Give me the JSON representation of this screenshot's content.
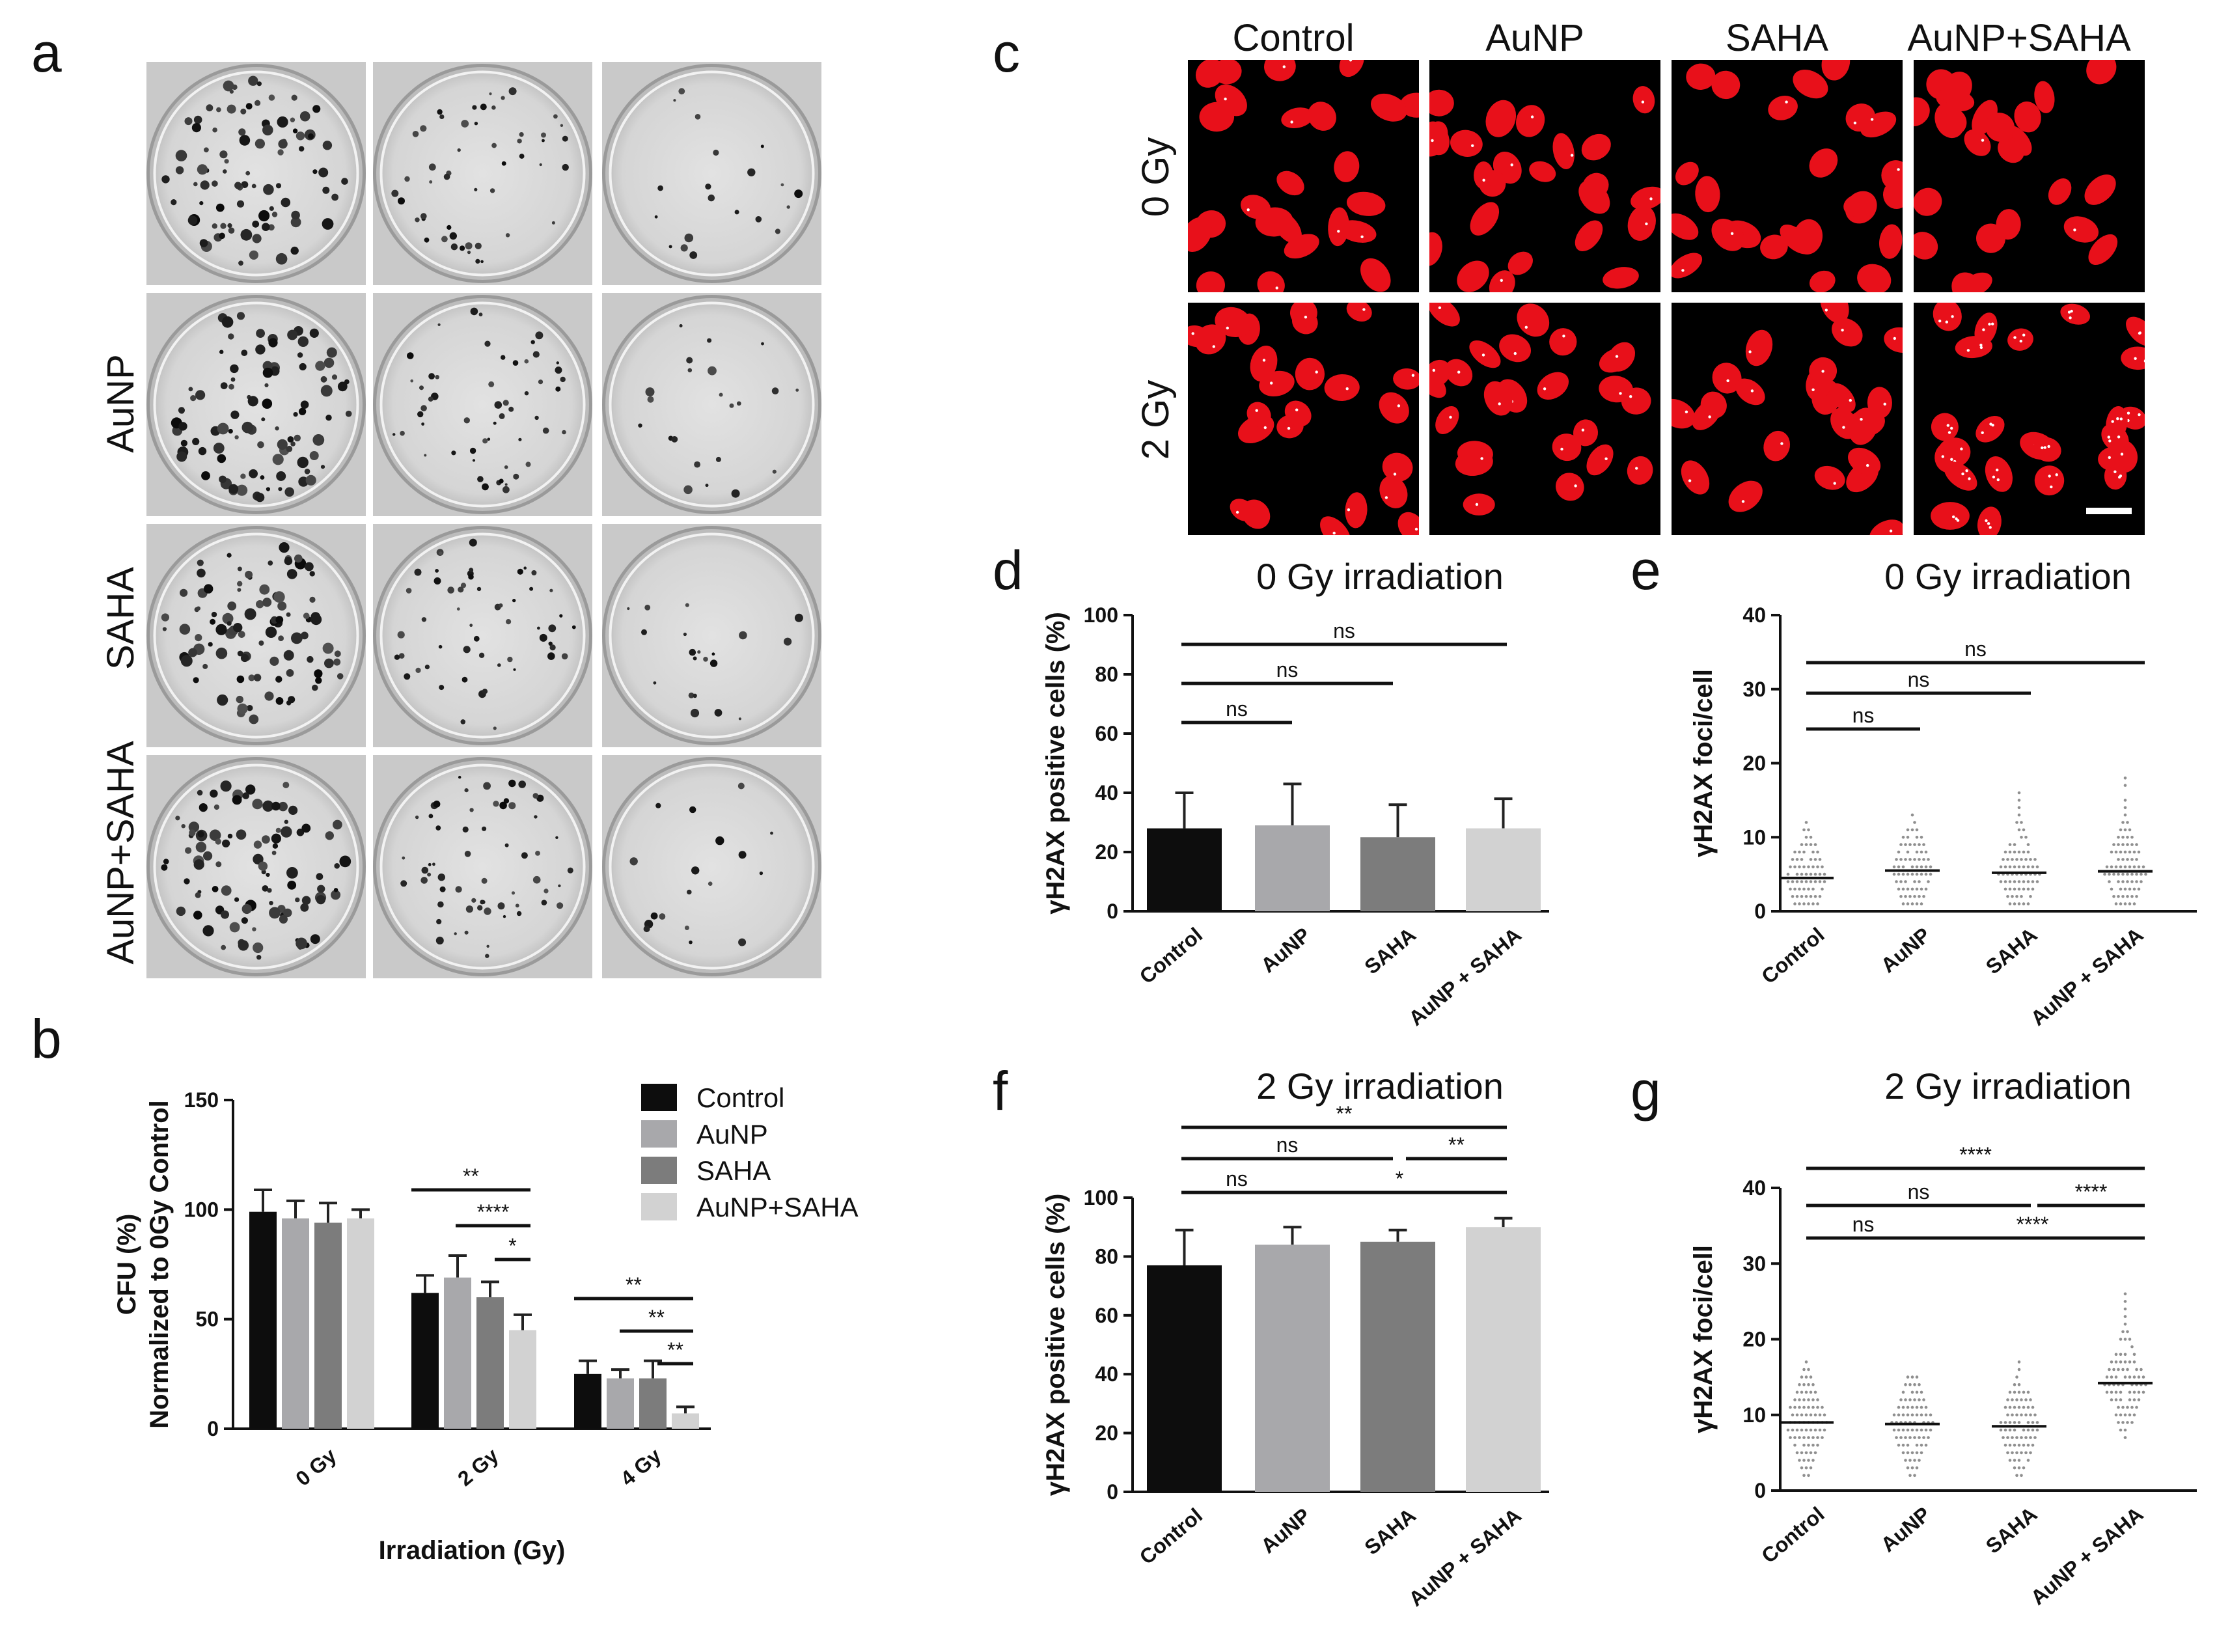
{
  "panel_labels": {
    "a": "a",
    "b": "b",
    "c": "c",
    "d": "d",
    "e": "e",
    "f": "f",
    "g": "g"
  },
  "panel_a": {
    "row_labels": [
      "",
      "AuNP",
      "SAHA",
      "AuNP+SAHA"
    ],
    "columns": 3
  },
  "panel_c": {
    "col_labels": [
      "Control",
      "AuNP",
      "SAHA",
      "AuNP+SAHA"
    ],
    "row_labels": [
      "0 Gy",
      "2 Gy"
    ]
  },
  "colors": {
    "control": "#0d0d0d",
    "aunp": "#a8a8ab",
    "saha": "#7c7c7c",
    "aunp_saha": "#d2d2d2",
    "nucleus": "#e8101a",
    "foci": "#ffffff"
  },
  "chart_data": [
    {
      "id": "b",
      "type": "bar",
      "title": "",
      "xlabel": "Irradiation (Gy)",
      "ylabel": "CFU (%)",
      "ylabel2": "Normalized to 0Gy Control",
      "categories": [
        "0 Gy",
        "2 Gy",
        "4 Gy"
      ],
      "ylim": [
        0,
        150
      ],
      "yticks": [
        "0",
        "50",
        "100",
        "150"
      ],
      "legend_position": "top-right",
      "series": [
        {
          "name": "Control",
          "values": [
            99,
            62,
            25
          ],
          "errors": [
            10,
            8,
            6
          ]
        },
        {
          "name": "AuNP",
          "values": [
            96,
            69,
            23
          ],
          "errors": [
            8,
            10,
            4
          ]
        },
        {
          "name": "SAHA",
          "values": [
            94,
            60,
            23
          ],
          "errors": [
            9,
            7,
            8
          ]
        },
        {
          "name": "AuNP+SAHA",
          "values": [
            96,
            45,
            7
          ],
          "errors": [
            4,
            7,
            3
          ]
        }
      ],
      "significance": [
        {
          "label": "**",
          "group": 1
        },
        {
          "label": "****",
          "group": 1
        },
        {
          "label": "*",
          "group": 1
        },
        {
          "label": "**",
          "group": 2
        },
        {
          "label": "**",
          "group": 2
        },
        {
          "label": "**",
          "group": 2
        }
      ]
    },
    {
      "id": "d",
      "type": "bar",
      "title": "0 Gy irradiation",
      "xlabel": "",
      "ylabel": "γH2AX positive cells (%)",
      "categories": [
        "Control",
        "AuNP",
        "SAHA",
        "AuNP + SAHA"
      ],
      "ylim": [
        0,
        100
      ],
      "yticks": [
        "0",
        "20",
        "40",
        "60",
        "80",
        "100"
      ],
      "values": [
        28,
        29,
        25,
        28
      ],
      "errors": [
        12,
        14,
        11,
        10
      ],
      "significance": [
        "ns",
        "ns",
        "ns"
      ]
    },
    {
      "id": "e",
      "type": "scatter",
      "title": "0 Gy irradiation",
      "xlabel": "",
      "ylabel": "γH2AX foci/cell",
      "categories": [
        "Control",
        "AuNP",
        "SAHA",
        "AuNP + SAHA"
      ],
      "ylim": [
        0,
        40
      ],
      "yticks": [
        "0",
        "10",
        "20",
        "30",
        "40"
      ],
      "means": [
        4.5,
        5.5,
        5.2,
        5.4
      ],
      "max": [
        12,
        14,
        16,
        18
      ],
      "significance": [
        "ns",
        "ns",
        "ns"
      ]
    },
    {
      "id": "f",
      "type": "bar",
      "title": "2 Gy irradiation",
      "xlabel": "",
      "ylabel": "γH2AX positive cells (%)",
      "categories": [
        "Control",
        "AuNP",
        "SAHA",
        "AuNP + SAHA"
      ],
      "ylim": [
        0,
        100
      ],
      "yticks": [
        "0",
        "20",
        "40",
        "60",
        "80",
        "100"
      ],
      "values": [
        77,
        84,
        85,
        90
      ],
      "errors": [
        12,
        6,
        4,
        3
      ],
      "significance": [
        "**",
        "ns",
        "**",
        "ns",
        "*"
      ]
    },
    {
      "id": "g",
      "type": "scatter",
      "title": "2 Gy irradiation",
      "xlabel": "",
      "ylabel": "γH2AX foci/cell",
      "categories": [
        "Control",
        "AuNP",
        "SAHA",
        "AuNP + SAHA"
      ],
      "ylim": [
        0,
        40
      ],
      "yticks": [
        "0",
        "10",
        "20",
        "30",
        "40"
      ],
      "means": [
        9,
        8.8,
        8.5,
        14.2
      ],
      "max": [
        17,
        16,
        17,
        26
      ],
      "significance": [
        "****",
        "ns",
        "****",
        "ns",
        "****"
      ]
    }
  ]
}
